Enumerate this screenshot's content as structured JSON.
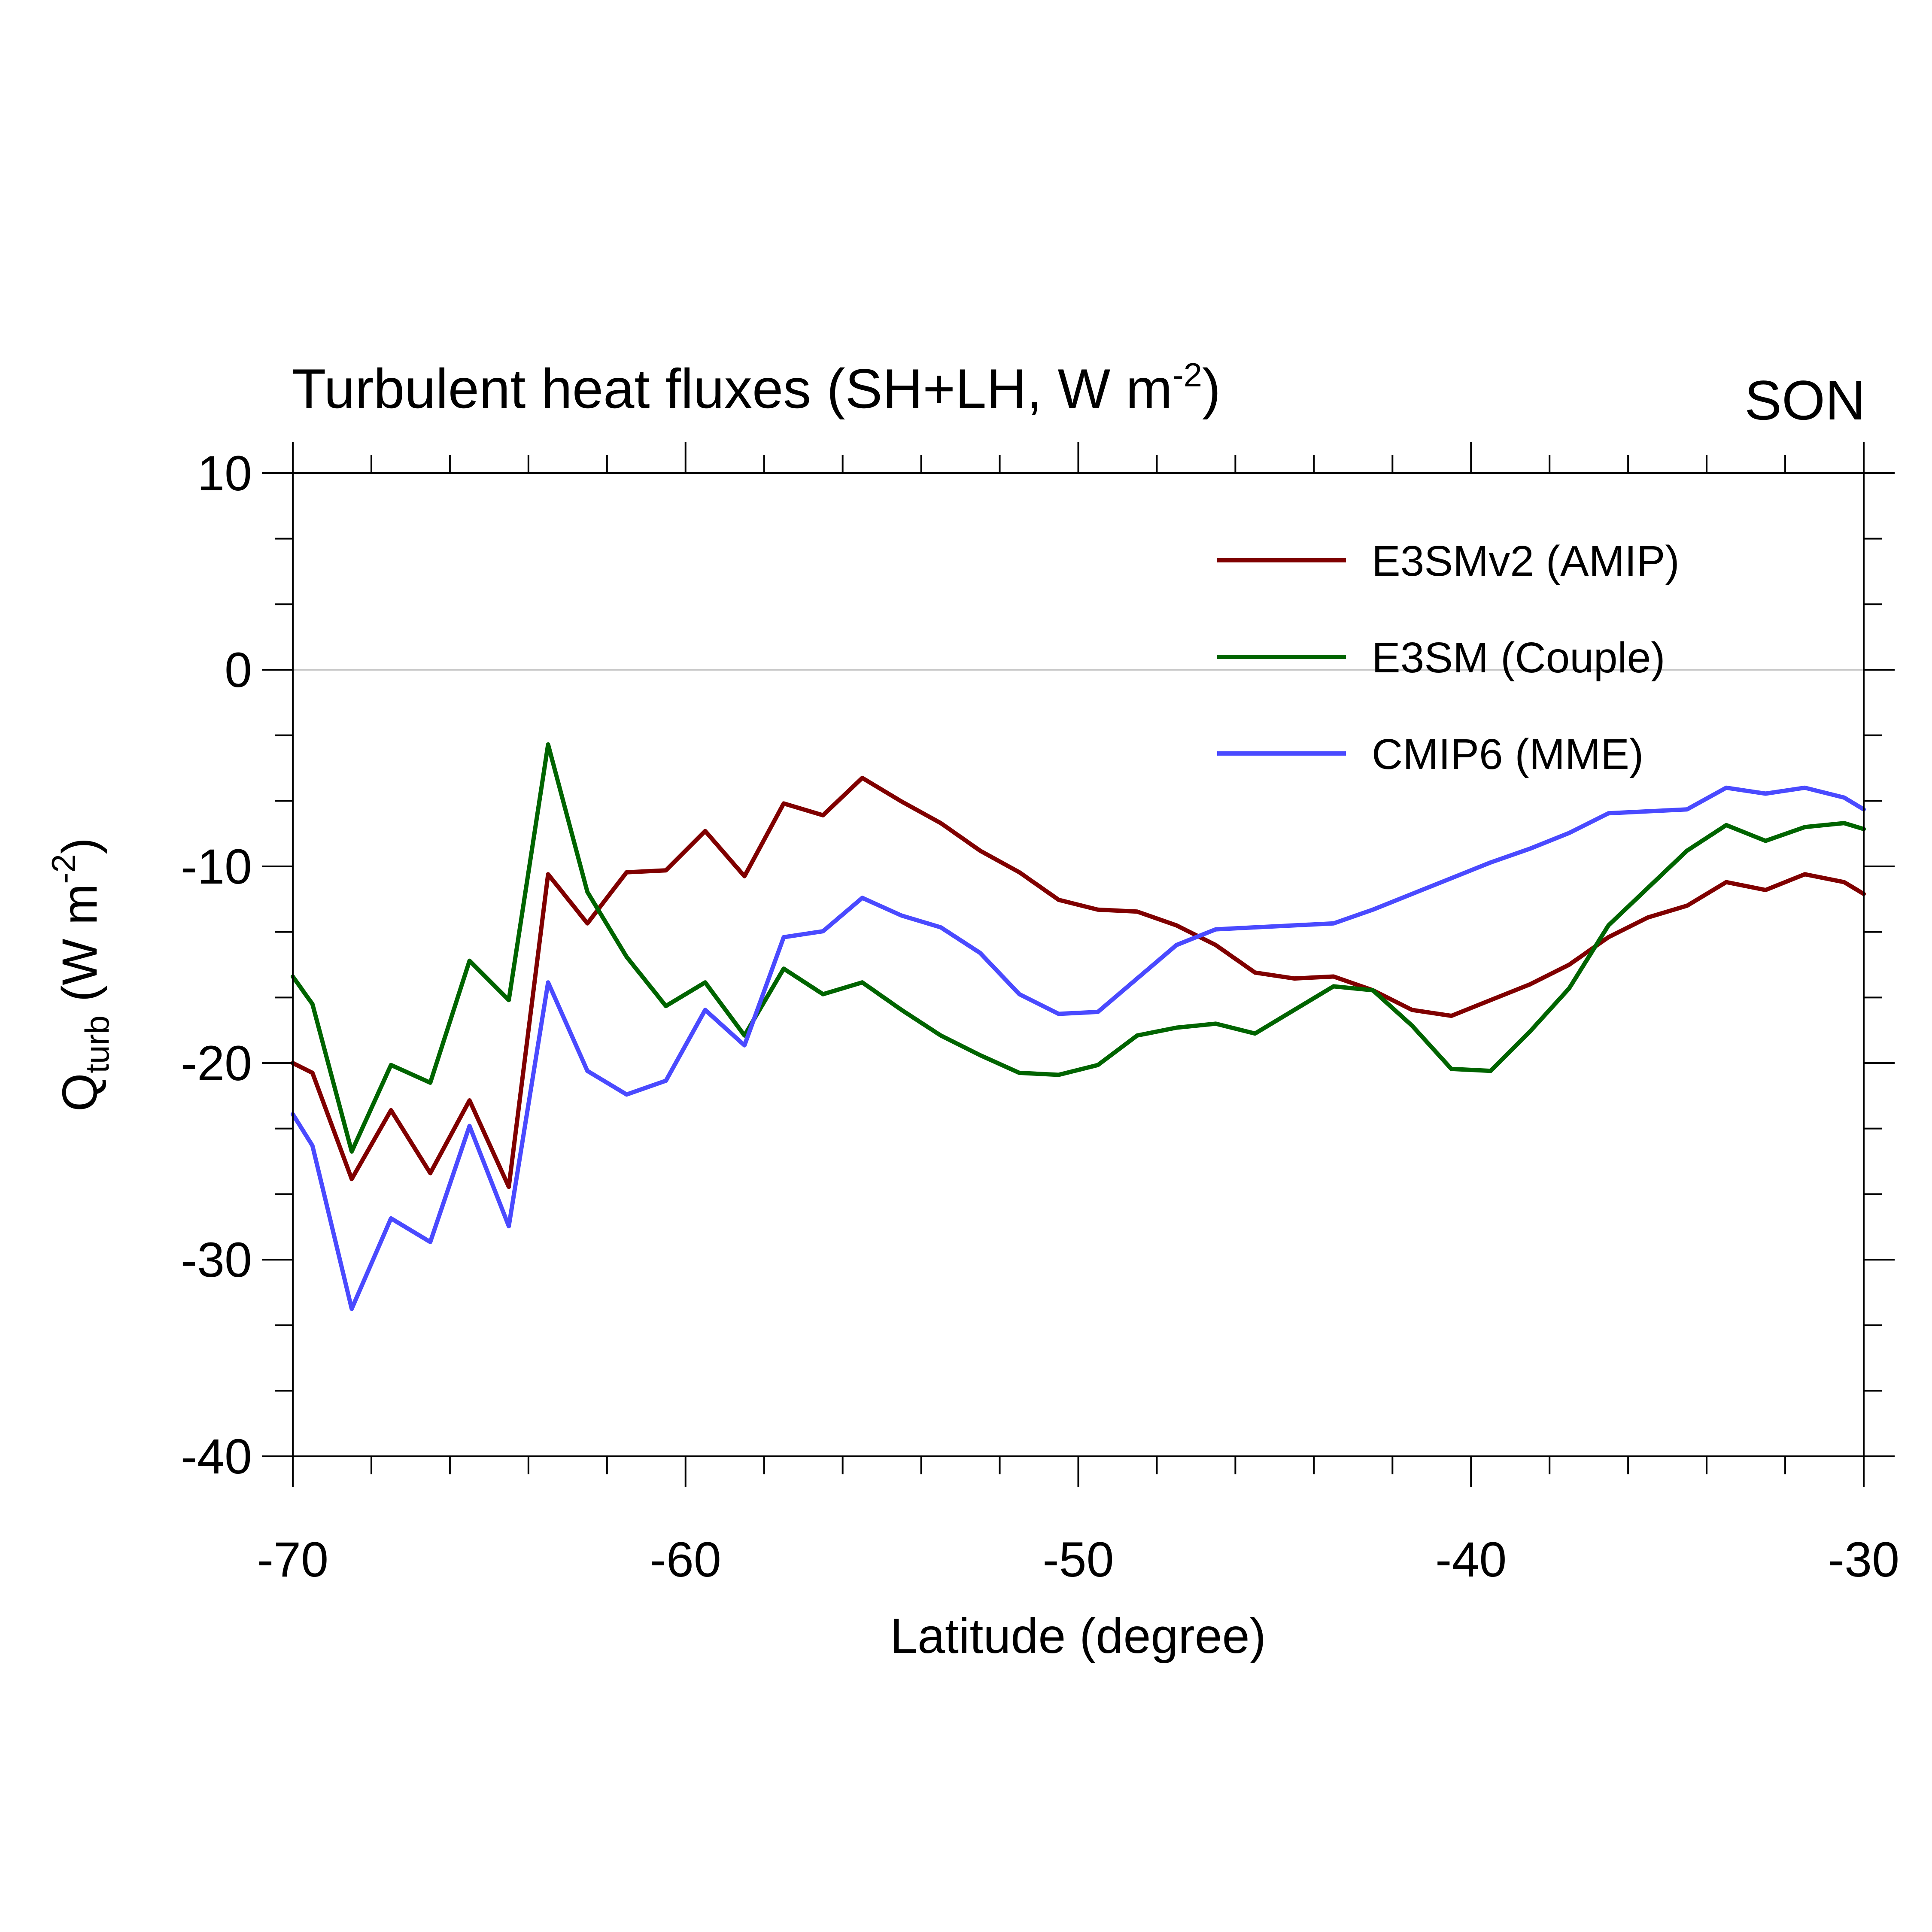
{
  "chart_data": {
    "type": "line",
    "title": "Turbulent heat fluxes (SH+LH, W m",
    "title_superscript": "-2",
    "title_suffix": ")",
    "season": "SON",
    "xlabel": "Latitude (degree)",
    "ylabel": {
      "main": "Q",
      "subscript": "turb",
      "unit_prefix": " (W m",
      "unit_superscript": "-2",
      "unit_suffix": ")"
    },
    "xlim": [
      -70,
      -30
    ],
    "ylim": [
      -40,
      10
    ],
    "x_ticks": [
      -70,
      -60,
      -50,
      -40,
      -30
    ],
    "x_tick_labels": [
      "-70",
      "-60",
      "-50",
      "-40",
      "-30"
    ],
    "x_minor_step": 2,
    "y_ticks": [
      -40,
      -30,
      -20,
      -10,
      0,
      10
    ],
    "y_tick_labels": [
      "-40",
      "-30",
      "-20",
      "-10",
      "0",
      "10"
    ],
    "y_minor_step": 3.3333333,
    "zero_line": true,
    "grid": false,
    "legend_position": "top-right",
    "x": [
      -70,
      -69.5,
      -68.5,
      -67.5,
      -66.5,
      -65.5,
      -64.5,
      -63.5,
      -62.5,
      -61.5,
      -60.5,
      -59.5,
      -58.5,
      -57.5,
      -56.5,
      -55.5,
      -54.5,
      -53.5,
      -52.5,
      -51.5,
      -50.5,
      -49.5,
      -48.5,
      -47.5,
      -46.5,
      -45.5,
      -44.5,
      -43.5,
      -42.5,
      -41.5,
      -40.5,
      -39.5,
      -38.5,
      -37.5,
      -36.5,
      -35.5,
      -34.5,
      -33.5,
      -32.5,
      -31.5,
      -30.5,
      -30
    ],
    "series": [
      {
        "name": "E3SMv2 (AMIP)",
        "color": "#800000",
        "values": [
          -20.0,
          -20.5,
          -25.9,
          -22.4,
          -25.6,
          -21.9,
          -26.3,
          -10.4,
          -12.9,
          -10.3,
          -10.2,
          -8.2,
          -10.5,
          -6.8,
          -7.4,
          -5.5,
          -6.7,
          -7.8,
          -9.2,
          -10.3,
          -11.7,
          -12.2,
          -12.3,
          -13.0,
          -14.0,
          -15.4,
          -15.7,
          -15.6,
          -16.3,
          -17.3,
          -17.6,
          -16.8,
          -16.0,
          -15.0,
          -13.6,
          -12.6,
          -12.0,
          -10.8,
          -11.2,
          -10.4,
          -10.8,
          -11.4
        ]
      },
      {
        "name": "E3SM (Couple)",
        "color": "#006400",
        "values": [
          -15.6,
          -17.0,
          -24.5,
          -20.1,
          -21.0,
          -14.8,
          -16.8,
          -3.8,
          -11.3,
          -14.6,
          -17.1,
          -15.9,
          -18.6,
          -15.2,
          -16.5,
          -15.9,
          -17.3,
          -18.6,
          -19.6,
          -20.5,
          -20.6,
          -20.1,
          -18.6,
          -18.2,
          -18.0,
          -18.5,
          -17.3,
          -16.1,
          -16.3,
          -18.1,
          -20.3,
          -20.4,
          -18.4,
          -16.2,
          -13.0,
          -11.1,
          -9.2,
          -7.9,
          -8.7,
          -8.0,
          -7.8,
          -8.1
        ]
      },
      {
        "name": "CMIP6 (MME)",
        "color": "#4a4aff",
        "values": [
          -22.6,
          -24.2,
          -32.5,
          -27.9,
          -29.1,
          -23.2,
          -28.3,
          -15.9,
          -20.4,
          -21.6,
          -20.9,
          -17.3,
          -19.1,
          -13.6,
          -13.3,
          -11.6,
          -12.5,
          -13.1,
          -14.4,
          -16.5,
          -17.5,
          -17.4,
          -15.7,
          -14.0,
          -13.2,
          -13.1,
          -13.0,
          -12.9,
          -12.2,
          -11.4,
          -10.6,
          -9.8,
          -9.1,
          -8.3,
          -7.3,
          -7.2,
          -7.1,
          -6.0,
          -6.3,
          -6.0,
          -6.5,
          -7.1
        ]
      }
    ]
  }
}
